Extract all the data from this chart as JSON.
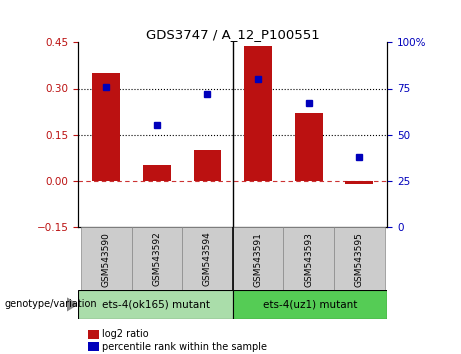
{
  "title": "GDS3747 / A_12_P100551",
  "samples": [
    "GSM543590",
    "GSM543592",
    "GSM543594",
    "GSM543591",
    "GSM543593",
    "GSM543595"
  ],
  "log2_ratio": [
    0.35,
    0.05,
    0.1,
    0.44,
    0.22,
    -0.01
  ],
  "percentile_rank": [
    76,
    55,
    72,
    80,
    67,
    38
  ],
  "bar_color": "#bb1111",
  "dot_color": "#0000bb",
  "ylim_left": [
    -0.15,
    0.45
  ],
  "ylim_right": [
    0,
    100
  ],
  "yticks_left": [
    -0.15,
    0.0,
    0.15,
    0.3,
    0.45
  ],
  "yticks_right": [
    0,
    25,
    50,
    75,
    100
  ],
  "hline_y_dotted": [
    0.15,
    0.3
  ],
  "hline_y_dash": [
    0.0
  ],
  "groups": [
    {
      "label": "ets-4(ok165) mutant",
      "indices": [
        0,
        1,
        2
      ],
      "color": "#aaddaa"
    },
    {
      "label": "ets-4(uz1) mutant",
      "indices": [
        3,
        4,
        5
      ],
      "color": "#55cc55"
    }
  ],
  "group_label_prefix": "genotype/variation",
  "legend_items": [
    {
      "label": "log2 ratio",
      "color": "#bb1111"
    },
    {
      "label": "percentile rank within the sample",
      "color": "#0000bb"
    }
  ],
  "zero_line_color": "#cc3333",
  "dotted_line_color": "#000000",
  "background_label": "#cccccc",
  "bar_width": 0.55
}
